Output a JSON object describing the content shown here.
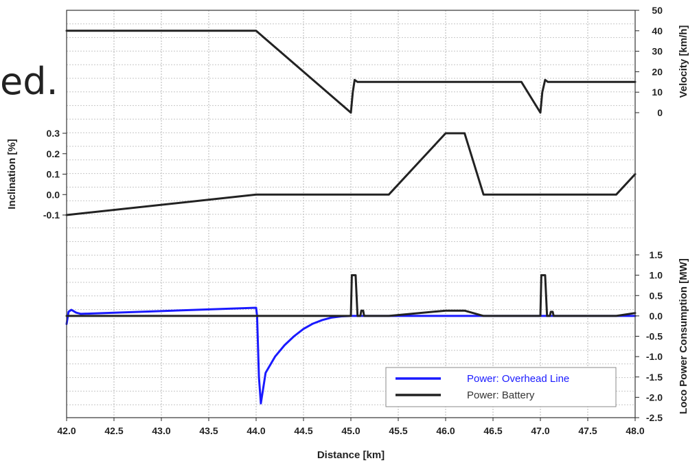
{
  "slide_fragment": "ed.",
  "chart_data": {
    "type": "line",
    "x": {
      "label": "Distance [km]",
      "range": [
        42.0,
        48.0
      ],
      "ticks": [
        "42.0",
        "42.5",
        "43.0",
        "43.5",
        "44.0",
        "44.5",
        "45.0",
        "45.5",
        "46.0",
        "46.5",
        "47.0",
        "47.5",
        "48.0"
      ]
    },
    "panels": [
      {
        "name": "velocity",
        "ylabel": "Velocity [km/h]",
        "ylim": [
          0,
          50
        ],
        "ticks": [
          "0",
          "10",
          "20",
          "30",
          "40",
          "50"
        ],
        "tick_values": [
          0,
          10,
          20,
          30,
          40,
          50
        ],
        "series": [
          {
            "color": "#222222",
            "points": [
              [
                42.0,
                40
              ],
              [
                44.0,
                40
              ],
              [
                45.0,
                0
              ],
              [
                45.02,
                10
              ],
              [
                45.04,
                16
              ],
              [
                45.07,
                15
              ],
              [
                46.8,
                15
              ],
              [
                47.0,
                0
              ],
              [
                47.02,
                10
              ],
              [
                47.05,
                16
              ],
              [
                47.08,
                15
              ],
              [
                48.0,
                15
              ]
            ]
          }
        ]
      },
      {
        "name": "inclination",
        "ylabel": "Inclination [%]",
        "ylim": [
          -0.1,
          0.3
        ],
        "ticks": [
          "-0.1",
          "0.0",
          "0.1",
          "0.2",
          "0.3"
        ],
        "tick_values": [
          -0.1,
          0.0,
          0.1,
          0.2,
          0.3
        ],
        "series": [
          {
            "color": "#222222",
            "points": [
              [
                42.0,
                -0.1
              ],
              [
                44.0,
                0.0
              ],
              [
                45.4,
                0.0
              ],
              [
                46.0,
                0.3
              ],
              [
                46.2,
                0.3
              ],
              [
                46.4,
                0.0
              ],
              [
                47.8,
                0.0
              ],
              [
                48.0,
                0.1
              ]
            ]
          }
        ]
      },
      {
        "name": "power",
        "ylabel": "Loco Power Consumption [MW]",
        "ylim": [
          -2.5,
          1.5
        ],
        "ticks": [
          "-2.5",
          "-2.0",
          "-1.5",
          "-1.0",
          "-0.5",
          "0.0",
          "0.5",
          "1.0",
          "1.5"
        ],
        "tick_values": [
          -2.5,
          -2.0,
          -1.5,
          -1.0,
          -0.5,
          0.0,
          0.5,
          1.0,
          1.5
        ],
        "series": [
          {
            "name": "Power: Overhead Line",
            "color": "#1a1aff",
            "points": [
              [
                42.0,
                -0.2
              ],
              [
                42.02,
                0.1
              ],
              [
                42.05,
                0.15
              ],
              [
                42.1,
                0.08
              ],
              [
                42.15,
                0.05
              ],
              [
                44.0,
                0.2
              ],
              [
                44.01,
                0.0
              ],
              [
                44.03,
                -1.5
              ],
              [
                44.05,
                -2.15
              ],
              [
                44.1,
                -1.4
              ],
              [
                44.2,
                -1.0
              ],
              [
                44.3,
                -0.72
              ],
              [
                44.4,
                -0.5
              ],
              [
                44.5,
                -0.32
              ],
              [
                44.6,
                -0.19
              ],
              [
                44.7,
                -0.1
              ],
              [
                44.8,
                -0.04
              ],
              [
                44.9,
                -0.01
              ],
              [
                45.0,
                0.0
              ],
              [
                48.0,
                0.0
              ]
            ]
          },
          {
            "name": "Power: Battery",
            "color": "#222222",
            "points": [
              [
                42.0,
                0.0
              ],
              [
                45.0,
                0.0
              ],
              [
                45.01,
                1.0
              ],
              [
                45.05,
                1.0
              ],
              [
                45.07,
                0.0
              ],
              [
                45.1,
                0.0
              ],
              [
                45.11,
                0.13
              ],
              [
                45.13,
                0.13
              ],
              [
                45.14,
                0.0
              ],
              [
                45.4,
                0.0
              ],
              [
                46.0,
                0.13
              ],
              [
                46.2,
                0.13
              ],
              [
                46.4,
                0.0
              ],
              [
                47.0,
                0.0
              ],
              [
                47.01,
                1.0
              ],
              [
                47.05,
                1.0
              ],
              [
                47.07,
                0.0
              ],
              [
                47.1,
                0.0
              ],
              [
                47.11,
                0.1
              ],
              [
                47.13,
                0.1
              ],
              [
                47.14,
                0.0
              ],
              [
                47.8,
                0.0
              ],
              [
                48.0,
                0.07
              ]
            ]
          }
        ]
      }
    ],
    "legend": {
      "placement": "bottom-right",
      "entries": [
        {
          "label": "Power: Overhead Line",
          "color": "#1a1aff",
          "text_color": "#1a1aff"
        },
        {
          "label": "Power: Battery",
          "color": "#222222",
          "text_color": "#333333"
        }
      ]
    },
    "grid": true
  }
}
